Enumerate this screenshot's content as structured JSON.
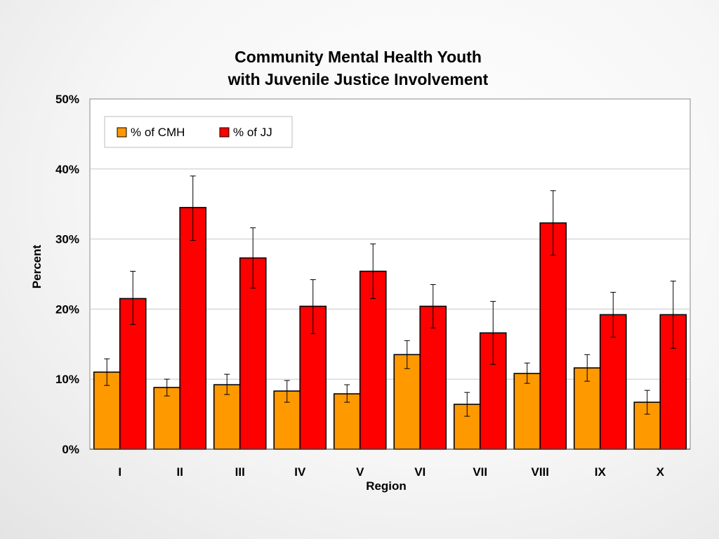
{
  "chart_data": {
    "type": "bar",
    "title": [
      "Community Mental Health Youth",
      "with Juvenile Justice Involvement"
    ],
    "xlabel": "Region",
    "ylabel": "Percent",
    "ylim": [
      0,
      50
    ],
    "yticks": [
      "0%",
      "10%",
      "20%",
      "30%",
      "40%",
      "50%"
    ],
    "grid": true,
    "legend_position": "top-left",
    "categories": [
      "I",
      "II",
      "III",
      "IV",
      "V",
      "VI",
      "VII",
      "VIII",
      "IX",
      "X"
    ],
    "series": [
      {
        "name": "% of CMH",
        "color": "#FF9900",
        "values": [
          11.0,
          8.8,
          9.2,
          8.3,
          7.9,
          13.5,
          6.4,
          10.8,
          11.6,
          6.7
        ],
        "error_low": [
          9.1,
          7.6,
          7.8,
          6.7,
          6.7,
          11.5,
          4.7,
          9.4,
          9.7,
          5.0
        ],
        "error_high": [
          12.9,
          10.0,
          10.7,
          9.8,
          9.2,
          15.5,
          8.1,
          12.3,
          13.5,
          8.4
        ]
      },
      {
        "name": "% of JJ",
        "color": "#FF0000",
        "values": [
          21.5,
          34.5,
          27.3,
          20.4,
          25.4,
          20.4,
          16.6,
          32.3,
          19.2,
          19.2
        ],
        "error_low": [
          17.8,
          29.8,
          23.0,
          16.5,
          21.5,
          17.3,
          12.1,
          27.7,
          16.0,
          14.4
        ],
        "error_high": [
          25.4,
          39.0,
          31.6,
          24.2,
          29.3,
          23.5,
          21.1,
          36.9,
          22.4,
          24.0
        ]
      }
    ]
  }
}
